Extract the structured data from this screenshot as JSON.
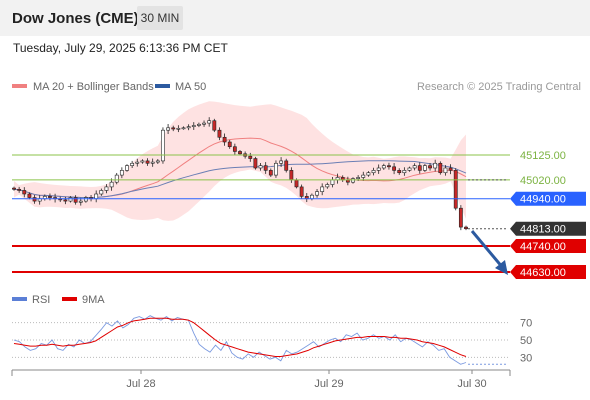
{
  "header": {
    "title": "Dow Jones (CME)",
    "timeframe": "30 MIN",
    "datetime": "Tuesday, July 29, 2025 6:13:36 PM CET"
  },
  "legend": {
    "ma20_label": "MA 20 + Bollinger Bands",
    "ma50_label": "MA 50",
    "ma20_color": "#f08080",
    "ma50_color": "#2c5aa0",
    "credit": "Research © 2025 Trading Central"
  },
  "rsi_legend": {
    "rsi_label": "RSI",
    "ma_label": "9MA",
    "rsi_color": "#5b7fd6",
    "ma_color": "#e00000"
  },
  "chart_data": [
    {
      "type": "candlestick",
      "x_labels": [
        "Jul 28",
        "Jul 29",
        "Jul 30"
      ],
      "ylim": [
        44600,
        45400
      ],
      "levels": [
        {
          "value": 45125.0,
          "label": "45125.00",
          "kind": "resistance",
          "color": "#8bc34a"
        },
        {
          "value": 45020.0,
          "label": "45020.00",
          "kind": "resistance",
          "color": "#8bc34a"
        },
        {
          "value": 44940.0,
          "label": "44940.00",
          "kind": "pivot",
          "color": "#2962ff"
        },
        {
          "value": 44813.0,
          "label": "44813.00",
          "kind": "last",
          "color": "#333333"
        },
        {
          "value": 44740.0,
          "label": "44740.00",
          "kind": "support",
          "color": "#e00000"
        },
        {
          "value": 44630.0,
          "label": "44630.00",
          "kind": "support",
          "color": "#e00000"
        }
      ],
      "closes": [
        44980,
        44975,
        44960,
        44945,
        44930,
        44940,
        44950,
        44945,
        44940,
        44935,
        44930,
        44945,
        44925,
        44930,
        44945,
        44940,
        44960,
        44975,
        44990,
        45010,
        45040,
        45060,
        45080,
        45090,
        45095,
        45100,
        45090,
        45095,
        45100,
        45230,
        45240,
        45235,
        45238,
        45240,
        45245,
        45250,
        45255,
        45260,
        45270,
        45230,
        45200,
        45180,
        45160,
        45140,
        45130,
        45120,
        45110,
        45070,
        45080,
        45060,
        45040,
        45090,
        45100,
        45060,
        45020,
        44990,
        44950,
        44940,
        44955,
        44970,
        44990,
        45000,
        45020,
        45030,
        45020,
        45010,
        45025,
        45030,
        45040,
        45050,
        45060,
        45070,
        45080,
        45075,
        45060,
        45050,
        45060,
        45070,
        45080,
        45060,
        45080,
        45070,
        45090,
        45050,
        45070,
        45060,
        44900,
        44820,
        44813
      ]
    },
    {
      "type": "line",
      "name": "RSI",
      "ylim": [
        20,
        80
      ],
      "ticks": [
        70,
        50,
        30
      ],
      "series": [
        {
          "name": "RSI",
          "values": [
            50,
            48,
            42,
            38,
            40,
            46,
            44,
            50,
            40,
            38,
            45,
            42,
            50,
            46,
            48,
            55,
            62,
            70,
            66,
            72,
            64,
            68,
            75,
            77,
            74,
            78,
            75,
            73,
            77,
            72,
            76,
            74,
            73,
            58,
            45,
            40,
            36,
            44,
            38,
            48,
            35,
            30,
            28,
            34,
            30,
            36,
            32,
            28,
            30,
            26,
            38,
            34,
            36,
            40,
            44,
            48,
            42,
            46,
            50,
            52,
            48,
            56,
            54,
            58,
            50,
            52,
            56,
            52,
            54,
            50,
            56,
            48,
            52,
            50,
            46,
            42,
            48,
            44,
            38,
            40,
            30,
            26,
            22,
            24
          ]
        },
        {
          "name": "9MA",
          "values": [
            46,
            45,
            44,
            43,
            43,
            44,
            44,
            45,
            44,
            43,
            44,
            44,
            45,
            46,
            47,
            49,
            53,
            57,
            61,
            65,
            67,
            70,
            72,
            73,
            74,
            75,
            75,
            75,
            75,
            74,
            74,
            74,
            73,
            70,
            65,
            60,
            55,
            50,
            46,
            44,
            42,
            40,
            38,
            36,
            35,
            34,
            33,
            32,
            31,
            31,
            32,
            33,
            34,
            36,
            38,
            41,
            43,
            45,
            47,
            49,
            50,
            51,
            52,
            53,
            53,
            54,
            54,
            54,
            54,
            53,
            53,
            52,
            52,
            51,
            50,
            48,
            47,
            46,
            44,
            42,
            39,
            36,
            33,
            31
          ]
        }
      ]
    }
  ]
}
